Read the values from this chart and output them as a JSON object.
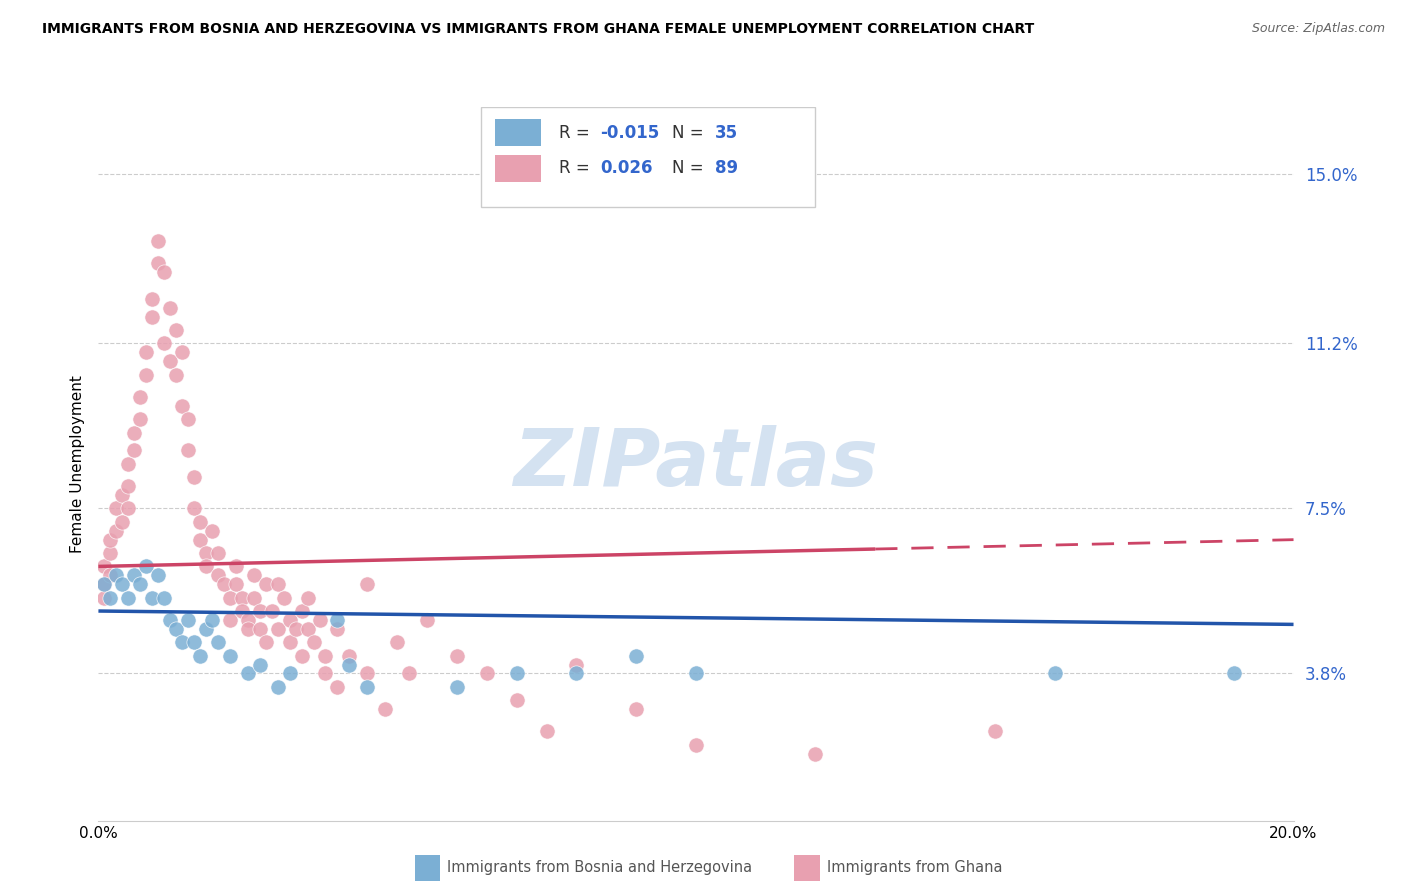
{
  "title": "IMMIGRANTS FROM BOSNIA AND HERZEGOVINA VS IMMIGRANTS FROM GHANA FEMALE UNEMPLOYMENT CORRELATION CHART",
  "source": "Source: ZipAtlas.com",
  "xlabel_blue": "Immigrants from Bosnia and Herzegovina",
  "xlabel_pink": "Immigrants from Ghana",
  "ylabel": "Female Unemployment",
  "xlim": [
    0.0,
    0.2
  ],
  "ylim": [
    0.005,
    0.165
  ],
  "yticks": [
    0.038,
    0.075,
    0.112,
    0.15
  ],
  "ytick_labels": [
    "3.8%",
    "7.5%",
    "11.2%",
    "15.0%"
  ],
  "xticks": [
    0.0,
    0.04,
    0.08,
    0.12,
    0.16,
    0.2
  ],
  "xtick_labels": [
    "0.0%",
    "",
    "",
    "",
    "",
    "20.0%"
  ],
  "blue_color": "#7bafd4",
  "pink_color": "#e8a0b0",
  "trend_blue_color": "#2255aa",
  "trend_pink_color": "#cc4466",
  "watermark_color": "#d0dff0",
  "blue_scatter": [
    [
      0.001,
      0.058
    ],
    [
      0.002,
      0.055
    ],
    [
      0.003,
      0.06
    ],
    [
      0.004,
      0.058
    ],
    [
      0.005,
      0.055
    ],
    [
      0.006,
      0.06
    ],
    [
      0.007,
      0.058
    ],
    [
      0.008,
      0.062
    ],
    [
      0.009,
      0.055
    ],
    [
      0.01,
      0.06
    ],
    [
      0.011,
      0.055
    ],
    [
      0.012,
      0.05
    ],
    [
      0.013,
      0.048
    ],
    [
      0.014,
      0.045
    ],
    [
      0.015,
      0.05
    ],
    [
      0.016,
      0.045
    ],
    [
      0.017,
      0.042
    ],
    [
      0.018,
      0.048
    ],
    [
      0.019,
      0.05
    ],
    [
      0.02,
      0.045
    ],
    [
      0.022,
      0.042
    ],
    [
      0.025,
      0.038
    ],
    [
      0.027,
      0.04
    ],
    [
      0.03,
      0.035
    ],
    [
      0.032,
      0.038
    ],
    [
      0.04,
      0.05
    ],
    [
      0.042,
      0.04
    ],
    [
      0.045,
      0.035
    ],
    [
      0.06,
      0.035
    ],
    [
      0.07,
      0.038
    ],
    [
      0.08,
      0.038
    ],
    [
      0.09,
      0.042
    ],
    [
      0.1,
      0.038
    ],
    [
      0.16,
      0.038
    ],
    [
      0.19,
      0.038
    ]
  ],
  "pink_scatter": [
    [
      0.001,
      0.058
    ],
    [
      0.001,
      0.062
    ],
    [
      0.001,
      0.055
    ],
    [
      0.002,
      0.065
    ],
    [
      0.002,
      0.068
    ],
    [
      0.002,
      0.06
    ],
    [
      0.003,
      0.07
    ],
    [
      0.003,
      0.075
    ],
    [
      0.004,
      0.078
    ],
    [
      0.004,
      0.072
    ],
    [
      0.005,
      0.08
    ],
    [
      0.005,
      0.085
    ],
    [
      0.005,
      0.075
    ],
    [
      0.006,
      0.088
    ],
    [
      0.006,
      0.092
    ],
    [
      0.007,
      0.095
    ],
    [
      0.007,
      0.1
    ],
    [
      0.008,
      0.105
    ],
    [
      0.008,
      0.11
    ],
    [
      0.009,
      0.118
    ],
    [
      0.009,
      0.122
    ],
    [
      0.01,
      0.13
    ],
    [
      0.01,
      0.135
    ],
    [
      0.011,
      0.128
    ],
    [
      0.011,
      0.112
    ],
    [
      0.012,
      0.12
    ],
    [
      0.012,
      0.108
    ],
    [
      0.013,
      0.115
    ],
    [
      0.013,
      0.105
    ],
    [
      0.014,
      0.11
    ],
    [
      0.014,
      0.098
    ],
    [
      0.015,
      0.095
    ],
    [
      0.015,
      0.088
    ],
    [
      0.016,
      0.082
    ],
    [
      0.016,
      0.075
    ],
    [
      0.017,
      0.072
    ],
    [
      0.017,
      0.068
    ],
    [
      0.018,
      0.065
    ],
    [
      0.018,
      0.062
    ],
    [
      0.019,
      0.07
    ],
    [
      0.02,
      0.065
    ],
    [
      0.02,
      0.06
    ],
    [
      0.021,
      0.058
    ],
    [
      0.022,
      0.055
    ],
    [
      0.022,
      0.05
    ],
    [
      0.023,
      0.062
    ],
    [
      0.023,
      0.058
    ],
    [
      0.024,
      0.055
    ],
    [
      0.024,
      0.052
    ],
    [
      0.025,
      0.05
    ],
    [
      0.025,
      0.048
    ],
    [
      0.026,
      0.06
    ],
    [
      0.026,
      0.055
    ],
    [
      0.027,
      0.052
    ],
    [
      0.027,
      0.048
    ],
    [
      0.028,
      0.045
    ],
    [
      0.028,
      0.058
    ],
    [
      0.029,
      0.052
    ],
    [
      0.03,
      0.058
    ],
    [
      0.03,
      0.048
    ],
    [
      0.031,
      0.055
    ],
    [
      0.032,
      0.05
    ],
    [
      0.032,
      0.045
    ],
    [
      0.033,
      0.048
    ],
    [
      0.034,
      0.052
    ],
    [
      0.034,
      0.042
    ],
    [
      0.035,
      0.055
    ],
    [
      0.035,
      0.048
    ],
    [
      0.036,
      0.045
    ],
    [
      0.037,
      0.05
    ],
    [
      0.038,
      0.042
    ],
    [
      0.038,
      0.038
    ],
    [
      0.04,
      0.048
    ],
    [
      0.04,
      0.035
    ],
    [
      0.042,
      0.042
    ],
    [
      0.045,
      0.058
    ],
    [
      0.045,
      0.038
    ],
    [
      0.048,
      0.03
    ],
    [
      0.05,
      0.045
    ],
    [
      0.052,
      0.038
    ],
    [
      0.055,
      0.05
    ],
    [
      0.06,
      0.042
    ],
    [
      0.065,
      0.038
    ],
    [
      0.07,
      0.032
    ],
    [
      0.075,
      0.025
    ],
    [
      0.08,
      0.04
    ],
    [
      0.09,
      0.03
    ],
    [
      0.1,
      0.022
    ],
    [
      0.12,
      0.02
    ],
    [
      0.15,
      0.025
    ]
  ],
  "blue_trend_x": [
    0.0,
    0.2
  ],
  "blue_trend_y": [
    0.052,
    0.049
  ],
  "pink_trend_x": [
    0.0,
    0.2
  ],
  "pink_trend_y": [
    0.062,
    0.068
  ]
}
